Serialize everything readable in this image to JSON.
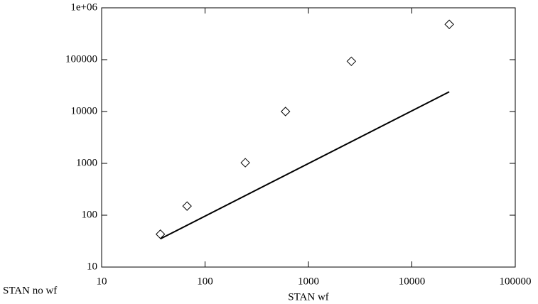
{
  "chart_data": {
    "type": "scatter",
    "x_label": "STAN wf",
    "y_label": "STAN no wf",
    "xscale": "log",
    "yscale": "log",
    "xlim": [
      10,
      100000
    ],
    "xticks": [
      10,
      100,
      1000,
      10000,
      100000
    ],
    "ylim": [
      10,
      1000000
    ],
    "yticks": [
      10,
      100,
      1000,
      10000,
      100000,
      {
        "value": 1000000,
        "label": "1e+06"
      }
    ],
    "series": [
      {
        "style": "marker",
        "color": "#000000",
        "x": [
          37,
          67,
          245,
          600,
          2600,
          23000
        ],
        "values": [
          43,
          150,
          1030,
          10000,
          93000,
          480000
        ]
      },
      {
        "style": "line",
        "color": "#000000",
        "x": [
          37,
          23000
        ],
        "values": [
          35,
          24000
        ]
      }
    ]
  }
}
